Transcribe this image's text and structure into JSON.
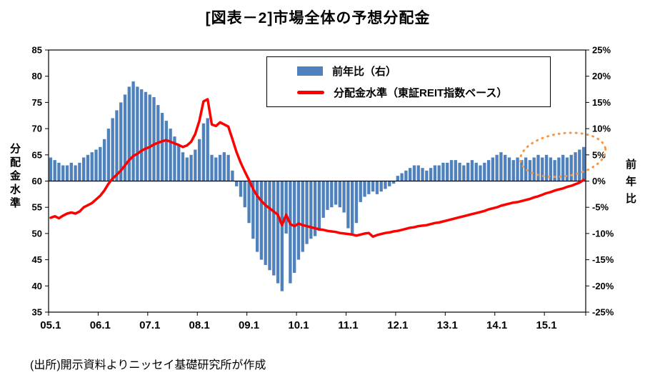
{
  "title": "[図表－2]市場全体の予想分配金",
  "source_note": "(出所)開示資料よりニッセイ基礎研究所が作成",
  "left_axis_title": "分配金水準",
  "right_axis_title": "前年比",
  "legend": [
    {
      "label": "前年比（右）",
      "type": "bar",
      "color": "#4F81BD"
    },
    {
      "label": "分配金水準（東証REIT指数ベース）",
      "type": "line",
      "color": "#FF0000"
    }
  ],
  "colors": {
    "bar": "#4F81BD",
    "line": "#FF0000",
    "annotation": "#F79646",
    "axis": "#000000",
    "background": "#FFFFFF"
  },
  "chart_data": {
    "type": "bar+line",
    "x_frequency": "monthly",
    "x_start": "2005.1",
    "x_end": "2015.10",
    "x_tick_labels": [
      "05.1",
      "06.1",
      "07.1",
      "08.1",
      "09.1",
      "10.1",
      "11.1",
      "12.1",
      "13.1",
      "14.1",
      "15.1"
    ],
    "left_axis": {
      "title": "分配金水準",
      "min": 35,
      "max": 85,
      "step": 5
    },
    "right_axis": {
      "title": "前年比",
      "min": -25,
      "max": 25,
      "step": 5,
      "format": "percent"
    },
    "grid": false,
    "legend_position": "top-center-inside",
    "series": [
      {
        "name": "前年比（右）",
        "type": "bar",
        "axis": "right",
        "color": "#4F81BD",
        "values": [
          4.5,
          4,
          3.5,
          3,
          3,
          3.5,
          3,
          3.5,
          4.5,
          5,
          5.5,
          6,
          6.5,
          8,
          10,
          12,
          13.5,
          15,
          16.5,
          18,
          19,
          18,
          17.5,
          17,
          16.5,
          16,
          14.5,
          13,
          11.5,
          10,
          8.5,
          7,
          5.5,
          4.5,
          5,
          6,
          8,
          11,
          12,
          5,
          4.5,
          5,
          5.5,
          5,
          2,
          -1,
          -3,
          -5,
          -8,
          -11,
          -13.5,
          -15,
          -16,
          -17,
          -18,
          -19.5,
          -21,
          -10,
          -19.5,
          -17.5,
          -15,
          -13.5,
          -12,
          -11,
          -10.5,
          -9.5,
          -7,
          -5.5,
          -5,
          -4.5,
          -5,
          -6,
          -9,
          -10,
          -8,
          -4,
          -3,
          -2.5,
          -2,
          -2.5,
          -2,
          -1.5,
          -1,
          -0.5,
          1,
          1.5,
          2,
          2.5,
          3,
          3,
          2.5,
          2,
          2.5,
          3,
          3,
          3.5,
          3.5,
          4,
          4,
          3.5,
          3,
          3.5,
          4,
          3.5,
          3,
          3.5,
          4,
          4.5,
          5,
          5.5,
          5,
          4.5,
          4,
          4.5,
          4,
          4.5,
          4,
          4.5,
          5,
          4.5,
          5,
          4.5,
          4,
          4.5,
          5,
          4.5,
          5,
          5.5,
          6,
          6.5
        ]
      },
      {
        "name": "分配金水準（東証REIT指数ベース）",
        "type": "line",
        "axis": "left",
        "color": "#FF0000",
        "values": [
          53,
          53.3,
          52.9,
          53.4,
          53.8,
          54,
          53.8,
          54.2,
          55,
          55.4,
          55.8,
          56.5,
          57.2,
          58.2,
          59.5,
          60.5,
          61.2,
          62,
          63,
          64,
          64.8,
          65.2,
          65.8,
          66.2,
          66.5,
          67,
          67.3,
          67.6,
          67.8,
          67.5,
          67.2,
          66.9,
          66.5,
          66.8,
          67.5,
          69,
          71.5,
          75.2,
          75.6,
          70.8,
          70.5,
          71.2,
          70.8,
          70.4,
          68,
          65.5,
          63.5,
          61.8,
          60.2,
          58.5,
          57.2,
          56.2,
          55.4,
          54.8,
          54.2,
          53.6,
          51.6,
          53.6,
          51.8,
          51.4,
          51.9,
          51.6,
          51.4,
          51.2,
          51,
          50.8,
          50.7,
          50.5,
          50.4,
          50.3,
          50.1,
          50,
          49.9,
          49.8,
          49.6,
          49.8,
          50,
          50.1,
          49.4,
          49.7,
          49.9,
          50.1,
          50.2,
          50.4,
          50.5,
          50.7,
          50.9,
          51.1,
          51.2,
          51.4,
          51.5,
          51.6,
          51.8,
          52,
          52.1,
          52.3,
          52.5,
          52.7,
          52.9,
          53.1,
          53.3,
          53.5,
          53.7,
          53.9,
          54.1,
          54.3,
          54.6,
          54.8,
          55,
          55.3,
          55.5,
          55.7,
          55.9,
          56,
          56.2,
          56.4,
          56.6,
          56.9,
          57.1,
          57.4,
          57.7,
          57.9,
          58.2,
          58.4,
          58.6,
          58.9,
          59.1,
          59.4,
          59.7,
          60.2
        ]
      }
    ],
    "annotation": {
      "shape": "dotted-ellipse",
      "color": "#F79646",
      "target": "recent positive year-over-year bars around 2015"
    }
  }
}
